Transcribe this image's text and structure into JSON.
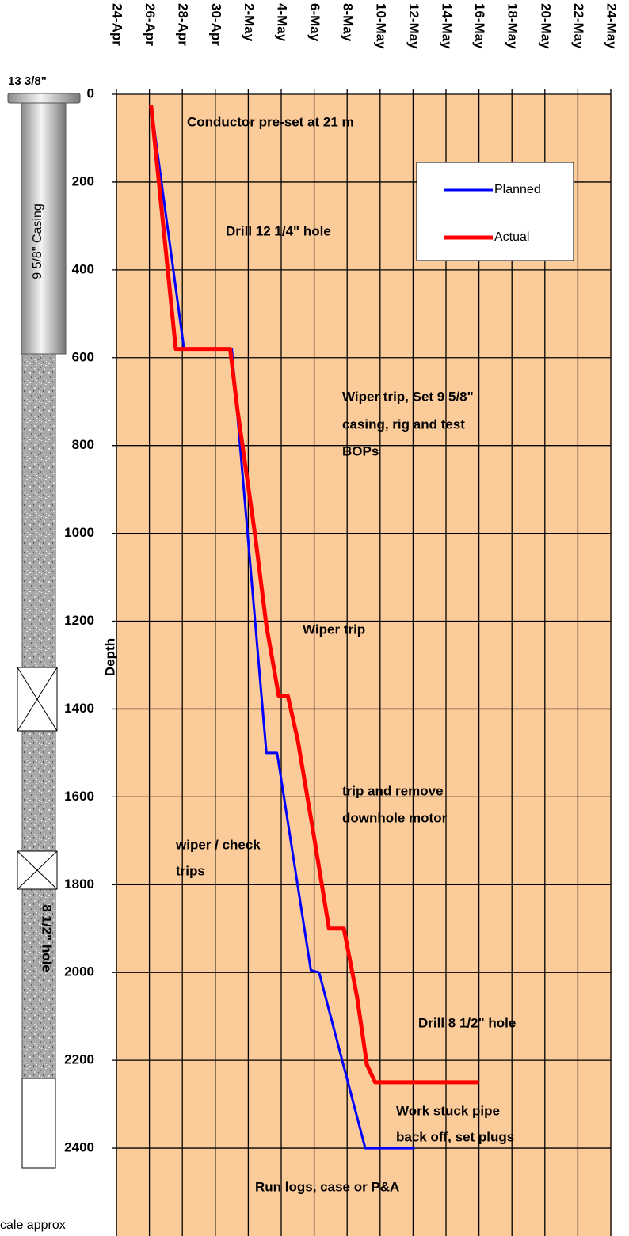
{
  "chart_data": {
    "type": "line",
    "y_axis_label": "Depth",
    "xlim": [
      0,
      30
    ],
    "xticks": [
      {
        "value": 0,
        "label": "24-Apr"
      },
      {
        "value": 2,
        "label": "26-Apr"
      },
      {
        "value": 4,
        "label": "28-Apr"
      },
      {
        "value": 6,
        "label": "30-Apr"
      },
      {
        "value": 8,
        "label": "2-May"
      },
      {
        "value": 10,
        "label": "4-May"
      },
      {
        "value": 12,
        "label": "6-May"
      },
      {
        "value": 14,
        "label": "8-May"
      },
      {
        "value": 16,
        "label": "10-May"
      },
      {
        "value": 18,
        "label": "12-May"
      },
      {
        "value": 20,
        "label": "14-May"
      },
      {
        "value": 22,
        "label": "16-May"
      },
      {
        "value": 24,
        "label": "18-May"
      },
      {
        "value": 26,
        "label": "20-May"
      },
      {
        "value": 28,
        "label": "22-May"
      },
      {
        "value": 30,
        "label": "24-May"
      }
    ],
    "ylim": [
      0,
      2600
    ],
    "y_inverted": true,
    "yticks": [
      0,
      200,
      400,
      600,
      800,
      1000,
      1200,
      1400,
      1600,
      1800,
      2000,
      2200,
      2400
    ],
    "grid": true,
    "series": [
      {
        "name": "Planned",
        "color": "#0000ff",
        "x": [
          2.1,
          4.1,
          7.0,
          9.1,
          9.75,
          11.8,
          12.3,
          15.1,
          18.1
        ],
        "values": [
          25,
          580,
          580,
          1500,
          1500,
          1995,
          2000,
          2400,
          2400
        ]
      },
      {
        "name": "Actual",
        "color": "#ff0000",
        "x": [
          2.1,
          3.6,
          6.9,
          7.35,
          8.4,
          9.1,
          9.85,
          10.4,
          11.0,
          11.9,
          12.9,
          13.8,
          14.6,
          15.2,
          15.7,
          22.0
        ],
        "values": [
          25,
          580,
          580,
          720,
          1000,
          1210,
          1370,
          1370,
          1470,
          1670,
          1900,
          1900,
          2055,
          2210,
          2250,
          2250
        ]
      }
    ],
    "annotations": [
      "Conductor pre-set at 21 m",
      "Drill 12 1/4\" hole",
      "Wiper trip, Set 9 5/8\"",
      "casing, rig and test",
      "BOPs",
      "Wiper trip",
      "trip and remove",
      "downhole motor",
      "wiper / check",
      "trips",
      "Drill 8 1/2\" hole",
      "Work stuck pipe",
      "back off, set plugs",
      "Run logs, case or P&A"
    ]
  },
  "schematic": {
    "labels": [
      "13 3/8\"",
      "9 5/8\" Casing",
      "8 1/2\" hole",
      "cale approx"
    ]
  }
}
